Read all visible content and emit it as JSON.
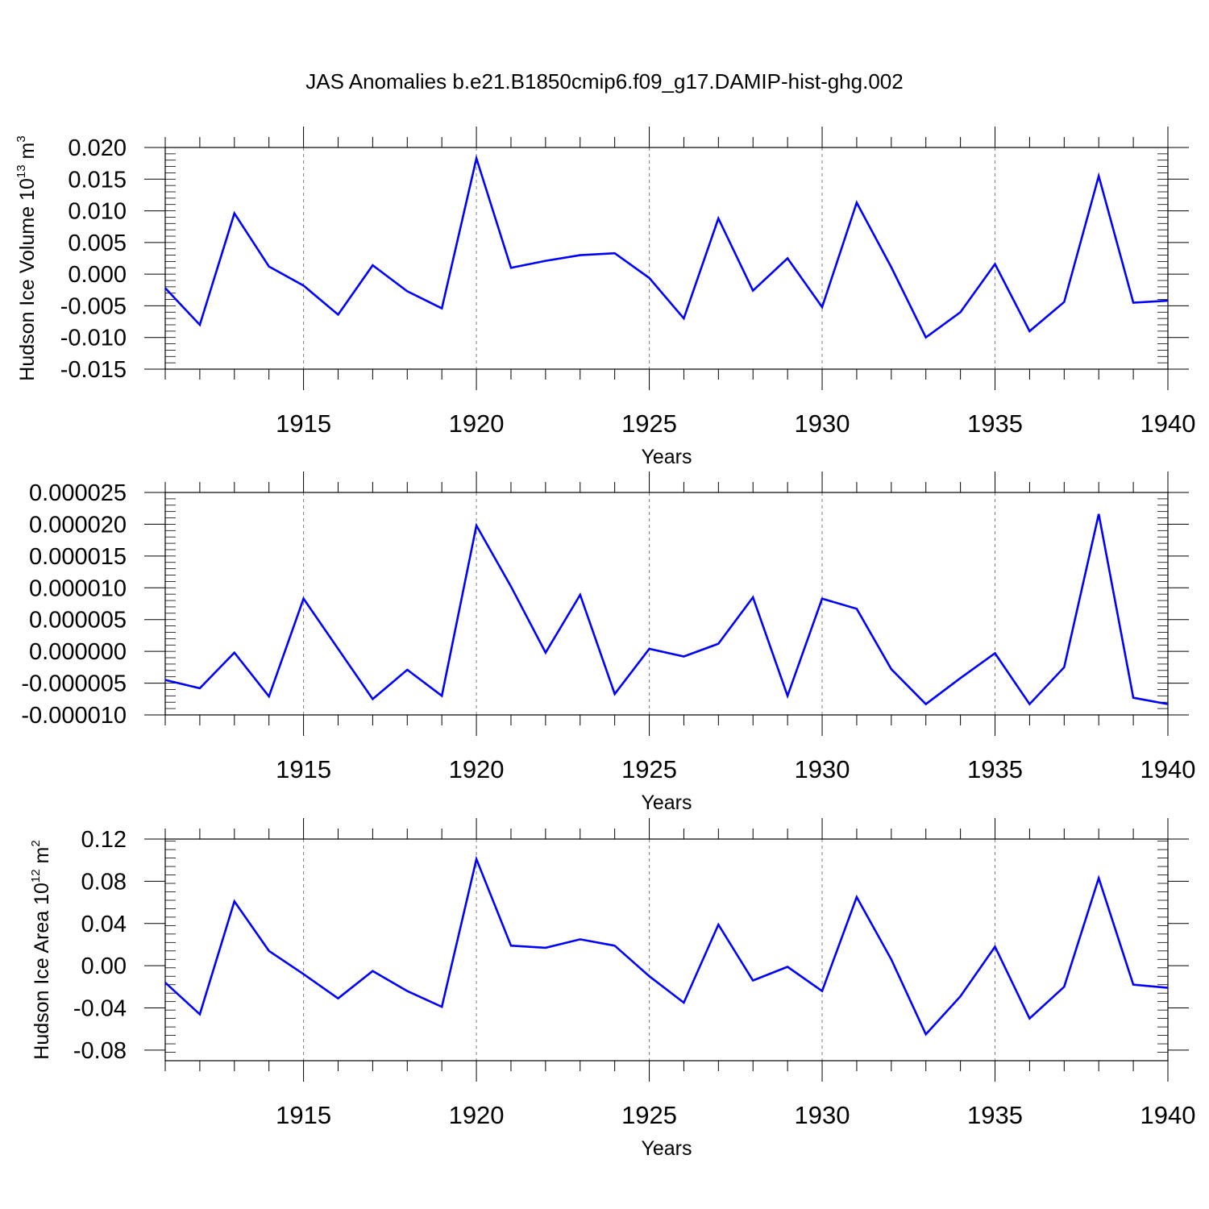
{
  "title": "JAS Anomalies b.e21.B1850cmip6.f09_g17.DAMIP-hist-ghg.002",
  "colors": {
    "series": "#0000ff",
    "axis": "#000000",
    "grid": "#808080"
  },
  "chart_data": [
    {
      "type": "line",
      "ylabel_main": "Hudson Ice Volume 10",
      "ylabel_exp": "13",
      "ylabel_unit": " m",
      "ylabel_unit_exp": "3",
      "xlabel": "Years",
      "xlim": [
        1911,
        1940
      ],
      "ylim": [
        -0.015,
        0.02
      ],
      "x_ticks": [
        1915,
        1920,
        1925,
        1930,
        1935,
        1940
      ],
      "y_ticks": [
        -0.015,
        -0.01,
        -0.005,
        0.0,
        0.005,
        0.01,
        0.015,
        0.02
      ],
      "y_tick_labels": [
        "-0.015",
        "-0.010",
        "-0.005",
        "0.000",
        "0.005",
        "0.010",
        "0.015",
        "0.020"
      ],
      "grid_x": true,
      "x": [
        1911,
        1912,
        1913,
        1914,
        1915,
        1916,
        1917,
        1918,
        1919,
        1920,
        1921,
        1922,
        1923,
        1924,
        1925,
        1926,
        1927,
        1928,
        1929,
        1930,
        1931,
        1932,
        1933,
        1934,
        1935,
        1936,
        1937,
        1938,
        1939,
        1940
      ],
      "values": [
        -0.0022,
        -0.008,
        0.0096,
        0.0012,
        -0.0018,
        -0.0064,
        0.0014,
        -0.0027,
        -0.0054,
        0.0183,
        0.001,
        0.0021,
        0.003,
        0.0033,
        -0.0006,
        -0.007,
        0.0088,
        -0.0026,
        0.0025,
        -0.0052,
        0.0113,
        0.0011,
        -0.01,
        -0.006,
        0.0016,
        -0.009,
        -0.0044,
        0.0155,
        -0.0045,
        -0.0042
      ]
    },
    {
      "type": "line",
      "ylabel_main": "",
      "xlabel": "Years",
      "xlim": [
        1911,
        1940
      ],
      "ylim": [
        -1e-05,
        2.5e-05
      ],
      "x_ticks": [
        1915,
        1920,
        1925,
        1930,
        1935,
        1940
      ],
      "y_ticks": [
        -1e-05,
        -5e-06,
        0.0,
        5e-06,
        1e-05,
        1.5e-05,
        2e-05,
        2.5e-05
      ],
      "y_tick_labels": [
        "-0.000010",
        "-0.000005",
        "0.000000",
        "0.000005",
        "0.000010",
        "0.000015",
        "0.000020",
        "0.000025"
      ],
      "grid_x": true,
      "x": [
        1911,
        1912,
        1913,
        1914,
        1915,
        1916,
        1917,
        1918,
        1919,
        1920,
        1921,
        1922,
        1923,
        1924,
        1925,
        1926,
        1927,
        1928,
        1929,
        1930,
        1931,
        1932,
        1933,
        1934,
        1935,
        1936,
        1937,
        1938,
        1939,
        1940
      ],
      "values": [
        -4.5e-06,
        -5.8e-06,
        -2e-07,
        -7.1e-06,
        8.3e-06,
        4e-07,
        -7.5e-06,
        -2.9e-06,
        -7e-06,
        1.98e-05,
        1.02e-05,
        -2e-07,
        8.9e-06,
        -6.7e-06,
        4e-07,
        -8e-07,
        1.2e-06,
        8.5e-06,
        -7e-06,
        8.3e-06,
        6.7e-06,
        -2.8e-06,
        -8.3e-06,
        -4.2e-06,
        -3e-07,
        -8.3e-06,
        -2.5e-06,
        2.16e-05,
        -7.3e-06,
        -8.3e-06
      ]
    },
    {
      "type": "line",
      "ylabel_main": "Hudson Ice Area 10",
      "ylabel_exp": "12",
      "ylabel_unit": " m",
      "ylabel_unit_exp": "2",
      "xlabel": "Years",
      "xlim": [
        1911,
        1940
      ],
      "ylim": [
        -0.09,
        0.12
      ],
      "x_ticks": [
        1915,
        1920,
        1925,
        1930,
        1935,
        1940
      ],
      "y_ticks": [
        -0.08,
        -0.04,
        0.0,
        0.04,
        0.08,
        0.12
      ],
      "y_tick_labels": [
        "-0.08",
        "-0.04",
        "0.00",
        "0.04",
        "0.08",
        "0.12"
      ],
      "grid_x": true,
      "x": [
        1911,
        1912,
        1913,
        1914,
        1915,
        1916,
        1917,
        1918,
        1919,
        1920,
        1921,
        1922,
        1923,
        1924,
        1925,
        1926,
        1927,
        1928,
        1929,
        1930,
        1931,
        1932,
        1933,
        1934,
        1935,
        1936,
        1937,
        1938,
        1939,
        1940
      ],
      "values": [
        -0.016,
        -0.046,
        0.061,
        0.014,
        -0.008,
        -0.031,
        -0.005,
        -0.024,
        -0.039,
        0.101,
        0.019,
        0.017,
        0.025,
        0.019,
        -0.01,
        -0.035,
        0.039,
        -0.014,
        -0.001,
        -0.024,
        0.065,
        0.006,
        -0.065,
        -0.029,
        0.018,
        -0.05,
        -0.02,
        0.083,
        -0.018,
        -0.021
      ]
    }
  ]
}
